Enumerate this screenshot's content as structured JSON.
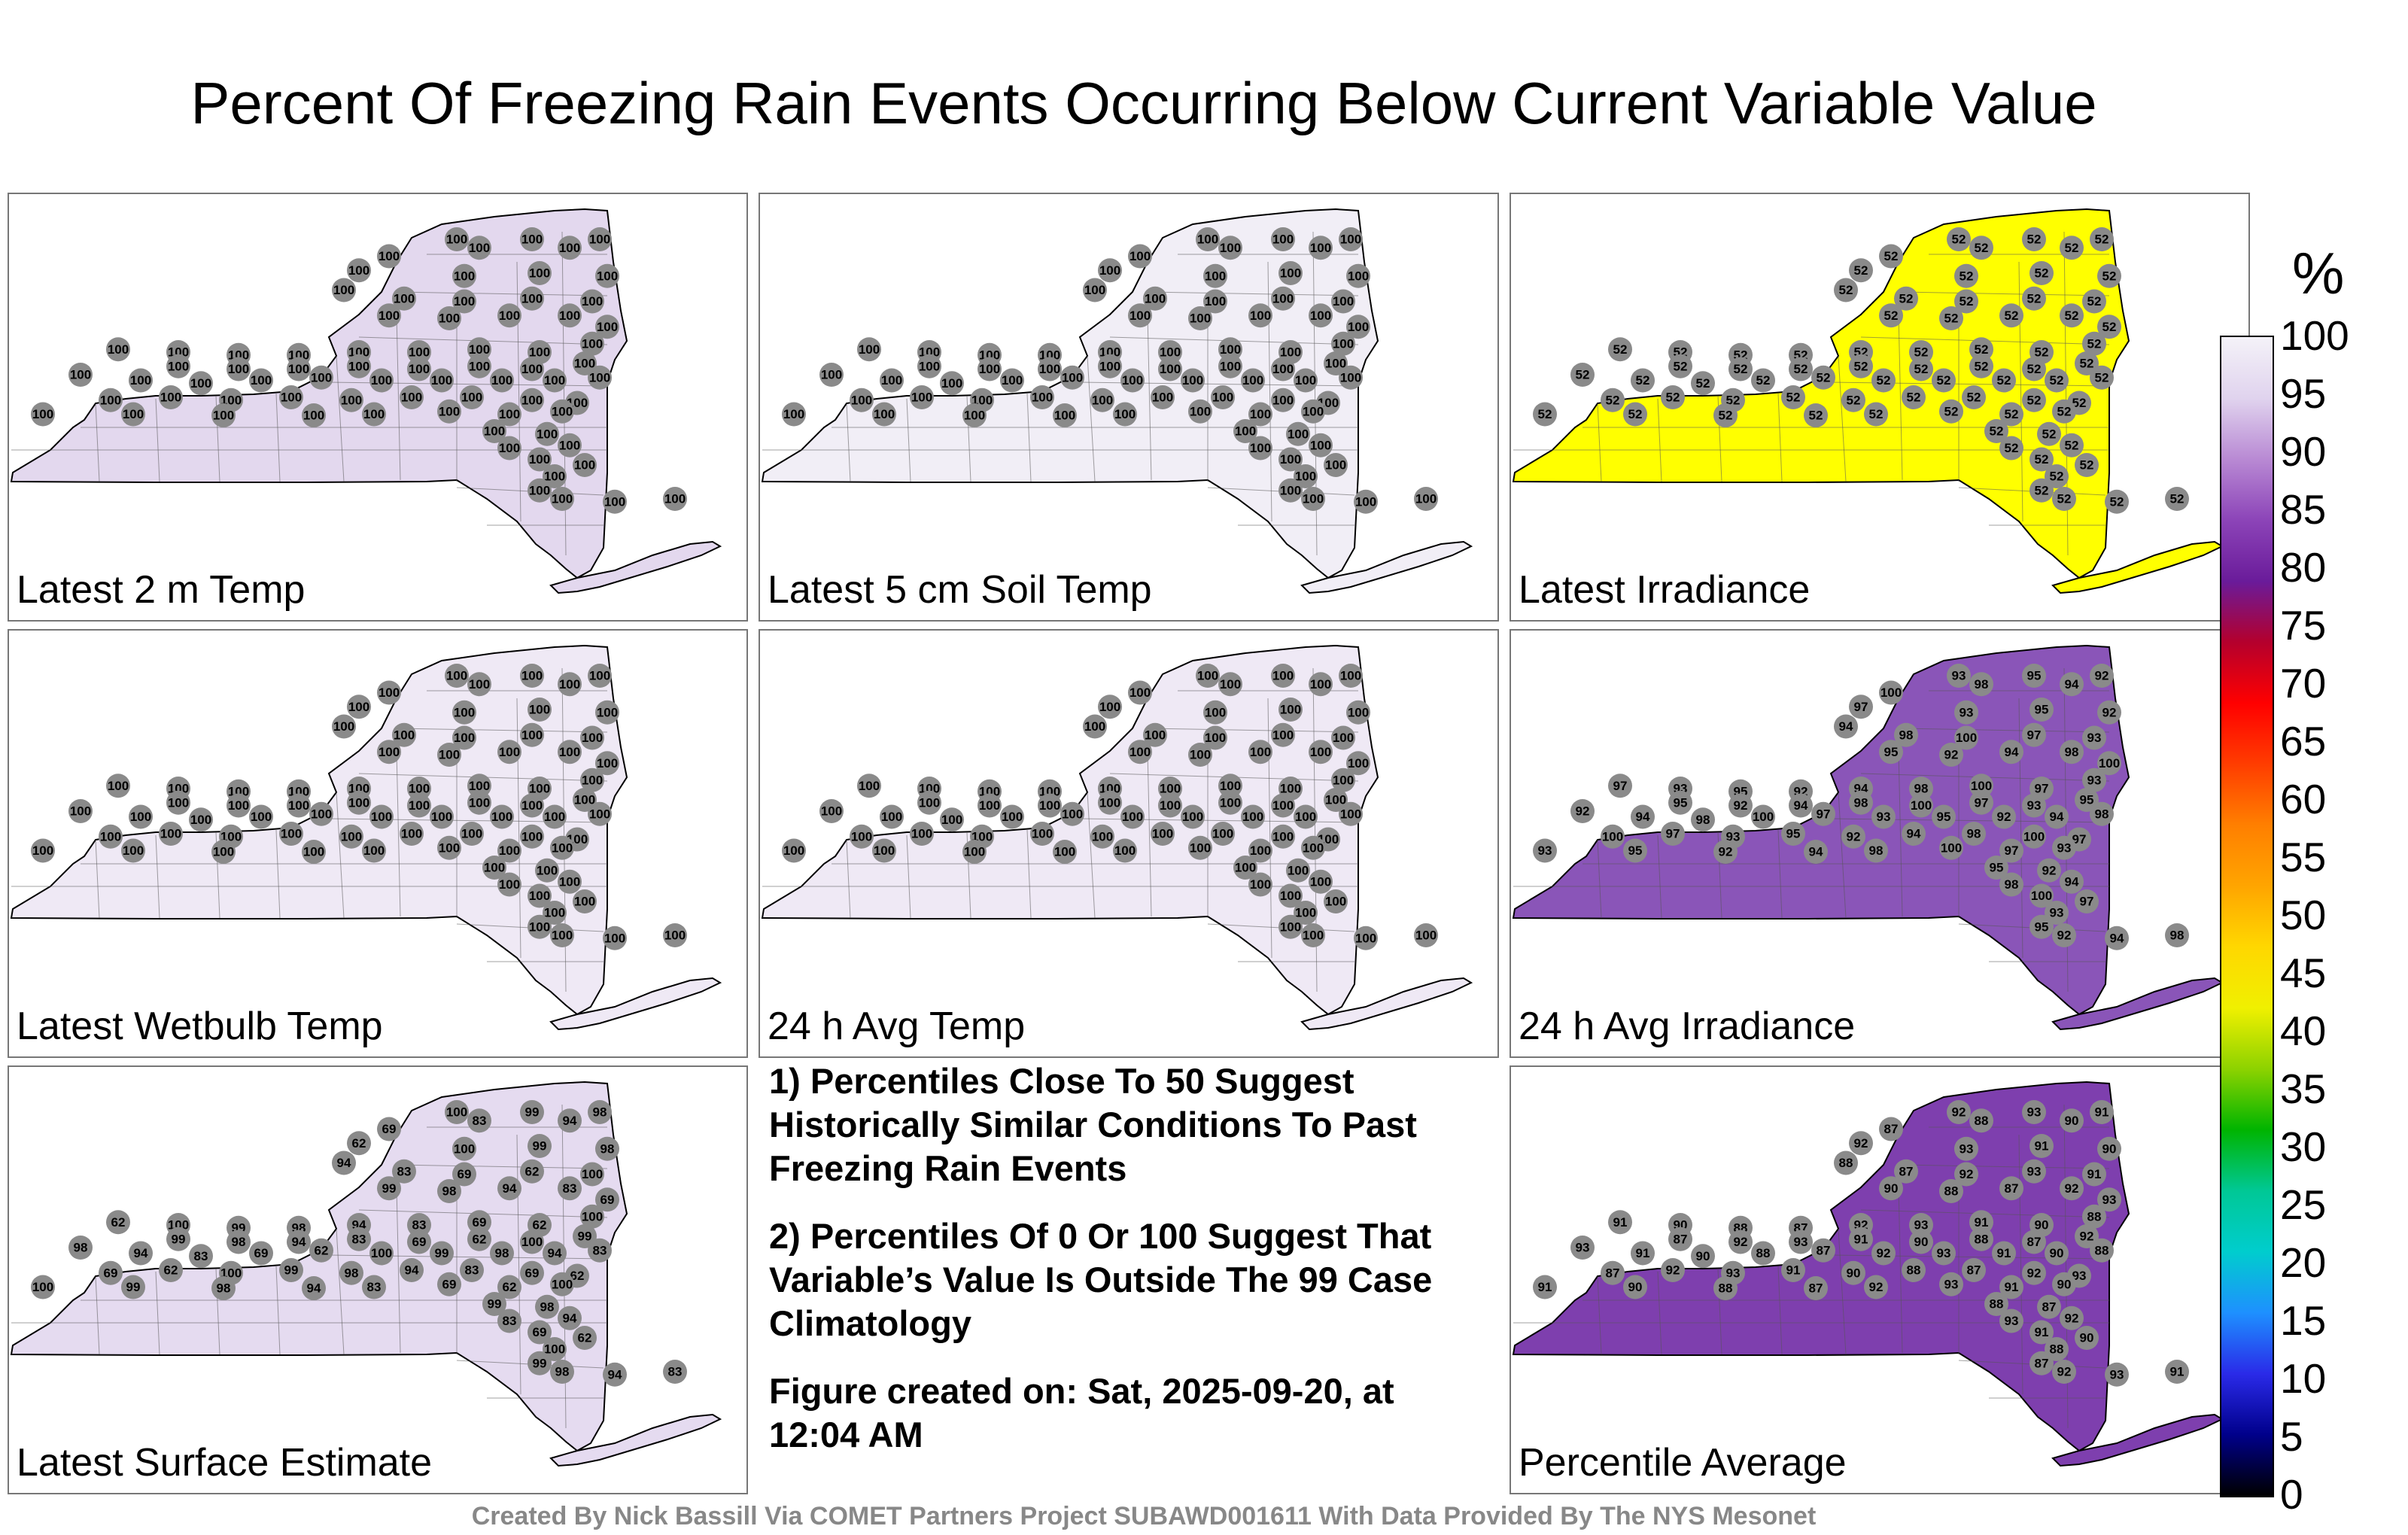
{
  "title": "Percent Of Freezing Rain Events Occurring Below Current Variable Value",
  "colorbar": {
    "unit": "%",
    "ticks": [
      "100",
      "95",
      "90",
      "85",
      "80",
      "75",
      "70",
      "65",
      "60",
      "55",
      "50",
      "45",
      "40",
      "35",
      "30",
      "25",
      "20",
      "15",
      "10",
      "5",
      "0"
    ],
    "gradient_colors": [
      "#000000",
      "#00008b",
      "#2a2ae8",
      "#1e90ff",
      "#00cdcd",
      "#00c896",
      "#00b400",
      "#8cd200",
      "#f0f000",
      "#ffd700",
      "#ffa500",
      "#ff7f00",
      "#ff3c00",
      "#ff0000",
      "#b4002d",
      "#6a1b9a",
      "#8c44b8",
      "#b98ad4",
      "#e0d3ee",
      "#f4f2f8"
    ]
  },
  "panels": [
    {
      "label": "Latest 2 m Temp",
      "fill": "#e3d8ee",
      "values": [
        "100"
      ]
    },
    {
      "label": "Latest 5 cm Soil Temp",
      "fill": "#f1eef6",
      "values": [
        "100"
      ]
    },
    {
      "label": "Latest Irradiance",
      "fill": "#ffff00",
      "values": [
        "52"
      ]
    },
    {
      "label": "Latest Wetbulb Temp",
      "fill": "#efe9f5",
      "values": [
        "100"
      ]
    },
    {
      "label": "24 h Avg Temp",
      "fill": "#efe9f5",
      "values": [
        "100"
      ]
    },
    {
      "label": "24 h Avg Irradiance",
      "fill": "#8a55b8",
      "values": [
        "93",
        "95",
        "92",
        "94",
        "98",
        "100",
        "97"
      ]
    },
    {
      "label": "Latest Surface Estimate",
      "fill": "#e5dbf0",
      "values": [
        "100",
        "99",
        "98",
        "94",
        "83",
        "69",
        "62"
      ]
    },
    {
      "label": "Percentile Average",
      "fill": "#7e3fae",
      "values": [
        "92",
        "93",
        "91",
        "90",
        "88",
        "87"
      ]
    }
  ],
  "notes": [
    "1) Percentiles Close To 50 Suggest Historically Similar Conditions To Past Freezing Rain Events",
    "2) Percentiles Of 0 Or 100 Suggest That Variable’s Value Is Outside The 99 Case Climatology",
    "Figure created on: Sat, 2025-09-20, at 12:04 AM"
  ],
  "credit": "Created By Nick Bassill Via COMET Partners Project SUBAWD001611 With Data Provided By The NYS Mesonet"
}
